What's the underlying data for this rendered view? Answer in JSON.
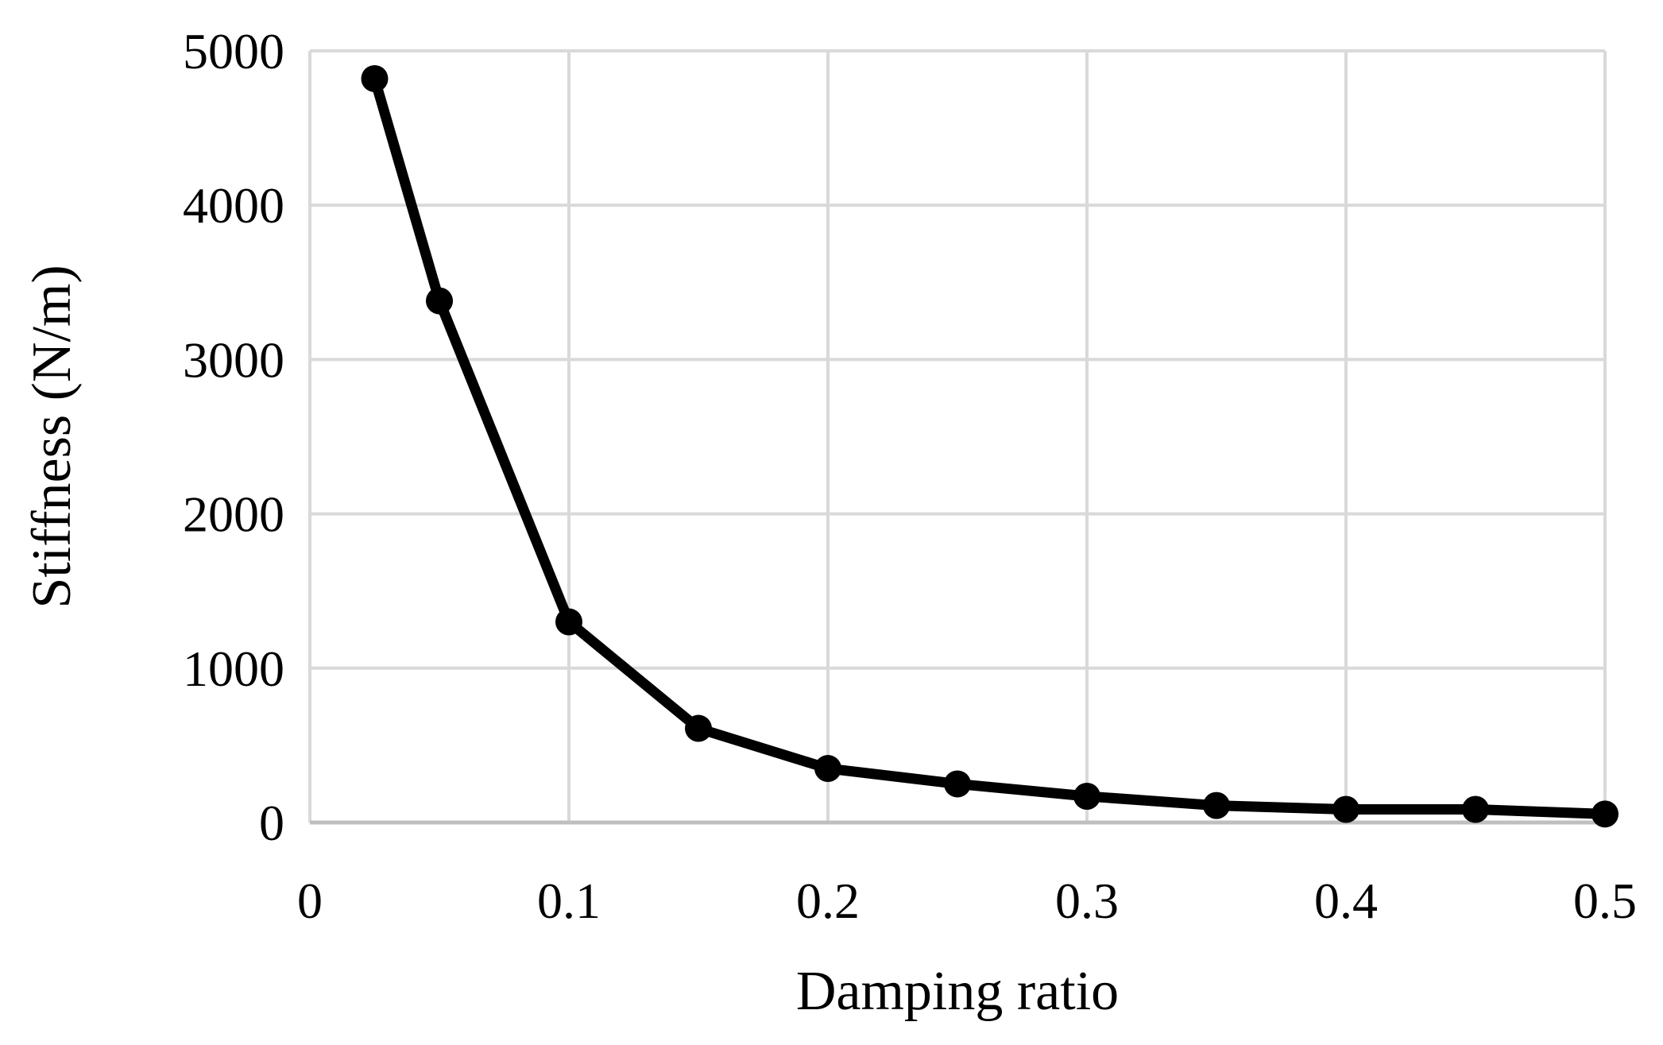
{
  "chart_data": {
    "type": "line",
    "title": "",
    "xlabel": "Damping ratio",
    "ylabel": "Stiffness (N/m)",
    "xlim": [
      0,
      0.5
    ],
    "ylim": [
      0,
      5000
    ],
    "x_ticks": [
      0,
      0.1,
      0.2,
      0.3,
      0.4,
      0.5
    ],
    "x_tick_labels": [
      "0",
      "0.1",
      "0.2",
      "0.3",
      "0.4",
      "0.5"
    ],
    "y_ticks": [
      0,
      1000,
      2000,
      3000,
      4000,
      5000
    ],
    "y_tick_labels": [
      "0",
      "1000",
      "2000",
      "3000",
      "4000",
      "5000"
    ],
    "grid": true,
    "legend": "none",
    "series": [
      {
        "color": "#000000",
        "marker": "circle",
        "x": [
          0.025,
          0.05,
          0.1,
          0.15,
          0.2,
          0.25,
          0.3,
          0.35,
          0.4,
          0.45,
          0.5
        ],
        "y": [
          4820,
          3380,
          1300,
          610,
          350,
          250,
          170,
          110,
          85,
          85,
          55
        ]
      }
    ]
  }
}
